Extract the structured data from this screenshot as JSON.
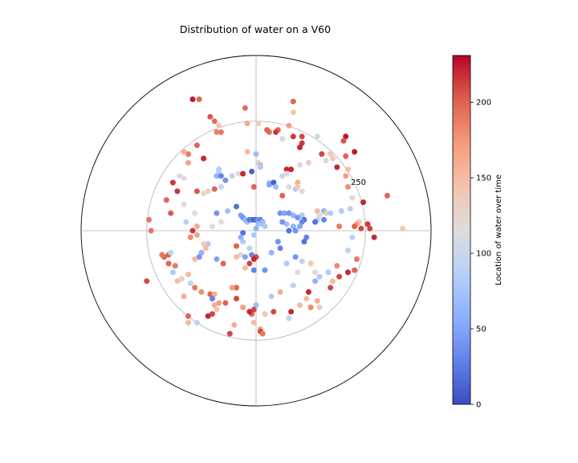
{
  "chart_data": {
    "type": "scatter",
    "projection": "polar",
    "title": "Distribution of water on a V60",
    "r_ticks": [
      250
    ],
    "r_max": 400,
    "grid": true,
    "colormap": "coolwarm",
    "colorbar": {
      "label": "Location of water over time",
      "range": [
        0,
        231
      ],
      "ticks": [
        0,
        50,
        100,
        150,
        200
      ]
    },
    "points": [
      {
        "x": -145,
        "y": 300,
        "c": 225
      },
      {
        "x": -130,
        "y": 300,
        "c": 200
      },
      {
        "x": -105,
        "y": 260,
        "c": 205
      },
      {
        "x": -95,
        "y": 250,
        "c": 195
      },
      {
        "x": -90,
        "y": 225,
        "c": 185
      },
      {
        "x": -80,
        "y": 225,
        "c": 190
      },
      {
        "x": -85,
        "y": 240,
        "c": 140
      },
      {
        "x": -25,
        "y": 280,
        "c": 195
      },
      {
        "x": -20,
        "y": 245,
        "c": 165
      },
      {
        "x": 5,
        "y": 245,
        "c": 135
      },
      {
        "x": 85,
        "y": 295,
        "c": 200
      },
      {
        "x": 85,
        "y": 270,
        "c": 140
      },
      {
        "x": 75,
        "y": 240,
        "c": 170
      },
      {
        "x": 50,
        "y": 230,
        "c": 200
      },
      {
        "x": 45,
        "y": 225,
        "c": 215
      },
      {
        "x": 30,
        "y": 225,
        "c": 195
      },
      {
        "x": 25,
        "y": 230,
        "c": 200
      },
      {
        "x": 60,
        "y": 210,
        "c": 110
      },
      {
        "x": 85,
        "y": 215,
        "c": 215
      },
      {
        "x": 105,
        "y": 215,
        "c": 210
      },
      {
        "x": 105,
        "y": 200,
        "c": 215
      },
      {
        "x": 100,
        "y": 190,
        "c": 220
      },
      {
        "x": 140,
        "y": 215,
        "c": 110
      },
      {
        "x": 205,
        "y": 215,
        "c": 225
      },
      {
        "x": 200,
        "y": 205,
        "c": 205
      },
      {
        "x": 225,
        "y": 180,
        "c": 225
      },
      {
        "x": 205,
        "y": 170,
        "c": 200
      },
      {
        "x": 185,
        "y": 145,
        "c": 220
      },
      {
        "x": 210,
        "y": 140,
        "c": 150
      },
      {
        "x": 205,
        "y": 125,
        "c": 170
      },
      {
        "x": 210,
        "y": 100,
        "c": 180
      },
      {
        "x": 220,
        "y": 75,
        "c": 120
      },
      {
        "x": 300,
        "y": 80,
        "c": 200
      },
      {
        "x": -135,
        "y": 195,
        "c": 200
      },
      {
        "x": -155,
        "y": 175,
        "c": 190
      },
      {
        "x": -165,
        "y": 180,
        "c": 160
      },
      {
        "x": -155,
        "y": 155,
        "c": 165
      },
      {
        "x": -120,
        "y": 165,
        "c": 220
      },
      {
        "x": -175,
        "y": 125,
        "c": 110
      },
      {
        "x": -165,
        "y": 120,
        "c": 115
      },
      {
        "x": -190,
        "y": 110,
        "c": 215
      },
      {
        "x": -180,
        "y": 90,
        "c": 215
      },
      {
        "x": -165,
        "y": 60,
        "c": 120
      },
      {
        "x": -205,
        "y": 70,
        "c": 200
      },
      {
        "x": -195,
        "y": 40,
        "c": 205
      },
      {
        "x": -245,
        "y": 25,
        "c": 190
      },
      {
        "x": -240,
        "y": 0,
        "c": 190
      },
      {
        "x": -135,
        "y": 90,
        "c": 205
      },
      {
        "x": -120,
        "y": 85,
        "c": 120
      },
      {
        "x": -110,
        "y": 90,
        "c": 130
      },
      {
        "x": -95,
        "y": 95,
        "c": 200
      },
      {
        "x": -70,
        "y": 115,
        "c": 40
      },
      {
        "x": -85,
        "y": 140,
        "c": 80
      },
      {
        "x": -85,
        "y": 135,
        "c": 85
      },
      {
        "x": -90,
        "y": 125,
        "c": 60
      },
      {
        "x": -80,
        "y": 125,
        "c": 30
      },
      {
        "x": -80,
        "y": 100,
        "c": 100
      },
      {
        "x": -55,
        "y": 125,
        "c": 90
      },
      {
        "x": -40,
        "y": 130,
        "c": 120
      },
      {
        "x": -30,
        "y": 130,
        "c": 220
      },
      {
        "x": -10,
        "y": 135,
        "c": 10
      },
      {
        "x": 0,
        "y": 175,
        "c": 70
      },
      {
        "x": 5,
        "y": 155,
        "c": 100
      },
      {
        "x": 10,
        "y": 150,
        "c": 160
      },
      {
        "x": 10,
        "y": 145,
        "c": 80
      },
      {
        "x": -20,
        "y": 180,
        "c": 150
      },
      {
        "x": 30,
        "y": 110,
        "c": 80
      },
      {
        "x": 30,
        "y": 105,
        "c": 50
      },
      {
        "x": 40,
        "y": 110,
        "c": 10
      },
      {
        "x": 45,
        "y": 100,
        "c": 70
      },
      {
        "x": 60,
        "y": 125,
        "c": 100
      },
      {
        "x": 70,
        "y": 140,
        "c": 220
      },
      {
        "x": 80,
        "y": 140,
        "c": 220
      },
      {
        "x": 70,
        "y": 130,
        "c": 120
      },
      {
        "x": 60,
        "y": 80,
        "c": 200
      },
      {
        "x": 75,
        "y": 100,
        "c": 110
      },
      {
        "x": 90,
        "y": 95,
        "c": 80
      },
      {
        "x": 95,
        "y": 110,
        "c": 160
      },
      {
        "x": -5,
        "y": 100,
        "c": 200
      },
      {
        "x": -45,
        "y": 55,
        "c": 20
      },
      {
        "x": -65,
        "y": 45,
        "c": 70
      },
      {
        "x": -90,
        "y": 40,
        "c": 40
      },
      {
        "x": -100,
        "y": 10,
        "c": 120
      },
      {
        "x": -140,
        "y": 40,
        "c": 115
      },
      {
        "x": -135,
        "y": 10,
        "c": 160
      },
      {
        "x": -135,
        "y": -10,
        "c": 165
      },
      {
        "x": -145,
        "y": 0,
        "c": 215
      },
      {
        "x": -160,
        "y": 20,
        "c": 90
      },
      {
        "x": -150,
        "y": -15,
        "c": 180
      },
      {
        "x": -110,
        "y": -30,
        "c": 80
      },
      {
        "x": -120,
        "y": -30,
        "c": 140
      },
      {
        "x": -115,
        "y": -40,
        "c": 150
      },
      {
        "x": -125,
        "y": -50,
        "c": 60
      },
      {
        "x": -130,
        "y": -60,
        "c": 40
      },
      {
        "x": -140,
        "y": -65,
        "c": 150
      },
      {
        "x": -80,
        "y": 20,
        "c": 120
      },
      {
        "x": -35,
        "y": 35,
        "c": 50
      },
      {
        "x": -30,
        "y": 30,
        "c": 40
      },
      {
        "x": -25,
        "y": 25,
        "c": 60
      },
      {
        "x": -20,
        "y": 20,
        "c": 70
      },
      {
        "x": -15,
        "y": 25,
        "c": 20
      },
      {
        "x": -10,
        "y": 25,
        "c": 30
      },
      {
        "x": -5,
        "y": 25,
        "c": 10
      },
      {
        "x": 0,
        "y": 25,
        "c": 20
      },
      {
        "x": 5,
        "y": 25,
        "c": 40
      },
      {
        "x": 10,
        "y": 25,
        "c": 30
      },
      {
        "x": 15,
        "y": 20,
        "c": 60
      },
      {
        "x": 15,
        "y": 15,
        "c": 70
      },
      {
        "x": 20,
        "y": 10,
        "c": 80
      },
      {
        "x": 0,
        "y": 5,
        "c": 60
      },
      {
        "x": 5,
        "y": 15,
        "c": 70
      },
      {
        "x": -5,
        "y": -10,
        "c": 80
      },
      {
        "x": -30,
        "y": -5,
        "c": 20
      },
      {
        "x": -35,
        "y": -15,
        "c": 60
      },
      {
        "x": -30,
        "y": -25,
        "c": 80
      },
      {
        "x": -15,
        "y": -40,
        "c": 90
      },
      {
        "x": -35,
        "y": -55,
        "c": 120
      },
      {
        "x": -45,
        "y": -35,
        "c": 200
      },
      {
        "x": -25,
        "y": -60,
        "c": 50
      },
      {
        "x": -45,
        "y": -60,
        "c": 150
      },
      {
        "x": -10,
        "y": -55,
        "c": 30
      },
      {
        "x": 0,
        "y": -60,
        "c": 210
      },
      {
        "x": -5,
        "y": -65,
        "c": 220
      },
      {
        "x": -5,
        "y": -90,
        "c": 30
      },
      {
        "x": -15,
        "y": -75,
        "c": 210
      },
      {
        "x": 20,
        "y": -90,
        "c": 40
      },
      {
        "x": 35,
        "y": -50,
        "c": 60
      },
      {
        "x": 50,
        "y": -25,
        "c": 40
      },
      {
        "x": 55,
        "y": -40,
        "c": 30
      },
      {
        "x": 70,
        "y": -75,
        "c": 80
      },
      {
        "x": 90,
        "y": -60,
        "c": 40
      },
      {
        "x": 105,
        "y": -70,
        "c": 90
      },
      {
        "x": 55,
        "y": 40,
        "c": 40
      },
      {
        "x": 65,
        "y": 40,
        "c": 50
      },
      {
        "x": 75,
        "y": 40,
        "c": 40
      },
      {
        "x": 85,
        "y": 35,
        "c": 60
      },
      {
        "x": 95,
        "y": 30,
        "c": 40
      },
      {
        "x": 105,
        "y": 35,
        "c": 80
      },
      {
        "x": 110,
        "y": 25,
        "c": 20
      },
      {
        "x": 105,
        "y": 20,
        "c": 30
      },
      {
        "x": 100,
        "y": 10,
        "c": 50
      },
      {
        "x": 85,
        "y": 10,
        "c": 60
      },
      {
        "x": 70,
        "y": 15,
        "c": 70
      },
      {
        "x": 60,
        "y": 20,
        "c": 40
      },
      {
        "x": 75,
        "y": 0,
        "c": 20
      },
      {
        "x": 90,
        "y": 0,
        "c": 40
      },
      {
        "x": 115,
        "y": -15,
        "c": 30
      },
      {
        "x": 110,
        "y": -25,
        "c": 20
      },
      {
        "x": 140,
        "y": 45,
        "c": 150
      },
      {
        "x": 155,
        "y": 45,
        "c": 60
      },
      {
        "x": 160,
        "y": 40,
        "c": 140
      },
      {
        "x": 170,
        "y": 40,
        "c": 80
      },
      {
        "x": 145,
        "y": 35,
        "c": 120
      },
      {
        "x": 140,
        "y": 25,
        "c": 90
      },
      {
        "x": 155,
        "y": 25,
        "c": 30
      },
      {
        "x": 135,
        "y": 20,
        "c": 20
      },
      {
        "x": 190,
        "y": 10,
        "c": 190
      },
      {
        "x": 195,
        "y": 45,
        "c": 80
      },
      {
        "x": 215,
        "y": 50,
        "c": 90
      },
      {
        "x": 235,
        "y": 20,
        "c": 140
      },
      {
        "x": 230,
        "y": 15,
        "c": 170
      },
      {
        "x": 225,
        "y": 10,
        "c": 200
      },
      {
        "x": 220,
        "y": -15,
        "c": 90
      },
      {
        "x": 240,
        "y": 5,
        "c": 210
      },
      {
        "x": 255,
        "y": 15,
        "c": 215
      },
      {
        "x": 260,
        "y": 5,
        "c": 210
      },
      {
        "x": 270,
        "y": -15,
        "c": 220
      },
      {
        "x": 335,
        "y": 5,
        "c": 140
      },
      {
        "x": 245,
        "y": 65,
        "c": 220
      },
      {
        "x": 210,
        "y": -45,
        "c": 90
      },
      {
        "x": 230,
        "y": -65,
        "c": 190
      },
      {
        "x": 225,
        "y": -90,
        "c": 200
      },
      {
        "x": 210,
        "y": -95,
        "c": 220
      },
      {
        "x": 185,
        "y": -80,
        "c": 180
      },
      {
        "x": 190,
        "y": -105,
        "c": 210
      },
      {
        "x": 165,
        "y": -95,
        "c": 80
      },
      {
        "x": 175,
        "y": -115,
        "c": 150
      },
      {
        "x": 170,
        "y": -130,
        "c": 210
      },
      {
        "x": 125,
        "y": -75,
        "c": 140
      },
      {
        "x": 135,
        "y": -115,
        "c": 60
      },
      {
        "x": 120,
        "y": -140,
        "c": 220
      },
      {
        "x": 115,
        "y": -155,
        "c": 150
      },
      {
        "x": 140,
        "y": -160,
        "c": 160
      },
      {
        "x": 145,
        "y": -175,
        "c": 140
      },
      {
        "x": 125,
        "y": -175,
        "c": 180
      },
      {
        "x": 100,
        "y": -170,
        "c": 150
      },
      {
        "x": 80,
        "y": -185,
        "c": 220
      },
      {
        "x": 75,
        "y": -200,
        "c": 90
      },
      {
        "x": 55,
        "y": -140,
        "c": 160
      },
      {
        "x": 85,
        "y": -125,
        "c": 90
      },
      {
        "x": 95,
        "y": -95,
        "c": 120
      },
      {
        "x": 35,
        "y": -150,
        "c": 80
      },
      {
        "x": 40,
        "y": -185,
        "c": 210
      },
      {
        "x": 20,
        "y": -190,
        "c": 140
      },
      {
        "x": 0,
        "y": -170,
        "c": 70
      },
      {
        "x": -5,
        "y": -180,
        "c": 210
      },
      {
        "x": -10,
        "y": -190,
        "c": 200
      },
      {
        "x": -15,
        "y": -185,
        "c": 220
      },
      {
        "x": -30,
        "y": -175,
        "c": 170
      },
      {
        "x": -5,
        "y": -210,
        "c": 150
      },
      {
        "x": 10,
        "y": -225,
        "c": 170
      },
      {
        "x": 10,
        "y": -230,
        "c": 210
      },
      {
        "x": 15,
        "y": -235,
        "c": 190
      },
      {
        "x": -50,
        "y": -215,
        "c": 160
      },
      {
        "x": -60,
        "y": -235,
        "c": 210
      },
      {
        "x": -45,
        "y": -155,
        "c": 210
      },
      {
        "x": -70,
        "y": -165,
        "c": 200
      },
      {
        "x": -85,
        "y": -165,
        "c": 170
      },
      {
        "x": -95,
        "y": -170,
        "c": 160
      },
      {
        "x": -90,
        "y": -180,
        "c": 140
      },
      {
        "x": -100,
        "y": -190,
        "c": 210
      },
      {
        "x": -110,
        "y": -195,
        "c": 220
      },
      {
        "x": -155,
        "y": -195,
        "c": 200
      },
      {
        "x": -155,
        "y": -210,
        "c": 150
      },
      {
        "x": -135,
        "y": -210,
        "c": 90
      },
      {
        "x": -105,
        "y": -145,
        "c": 200
      },
      {
        "x": -95,
        "y": -145,
        "c": 160
      },
      {
        "x": -100,
        "y": -155,
        "c": 30
      },
      {
        "x": -125,
        "y": -140,
        "c": 180
      },
      {
        "x": -140,
        "y": -130,
        "c": 190
      },
      {
        "x": -150,
        "y": -120,
        "c": 90
      },
      {
        "x": -155,
        "y": -100,
        "c": 150
      },
      {
        "x": -170,
        "y": -110,
        "c": 130
      },
      {
        "x": -165,
        "y": -150,
        "c": 160
      },
      {
        "x": -180,
        "y": -115,
        "c": 150
      },
      {
        "x": -185,
        "y": -80,
        "c": 190
      },
      {
        "x": -200,
        "y": -55,
        "c": 200
      },
      {
        "x": -210,
        "y": -60,
        "c": 200
      },
      {
        "x": -215,
        "y": -55,
        "c": 190
      },
      {
        "x": -200,
        "y": -75,
        "c": 200
      },
      {
        "x": -190,
        "y": -95,
        "c": 80
      },
      {
        "x": -250,
        "y": -115,
        "c": 210
      },
      {
        "x": -195,
        "y": -50,
        "c": 90
      },
      {
        "x": -45,
        "y": -130,
        "c": 200
      },
      {
        "x": -55,
        "y": -130,
        "c": 170
      },
      {
        "x": -90,
        "y": -65,
        "c": 50
      },
      {
        "x": -75,
        "y": -75,
        "c": 200
      },
      {
        "x": -25,
        "y": -85,
        "c": 150
      },
      {
        "x": 135,
        "y": -95,
        "c": 120
      },
      {
        "x": 145,
        "y": -105,
        "c": 80
      },
      {
        "x": 105,
        "y": 90,
        "c": 120
      },
      {
        "x": 95,
        "y": 100,
        "c": 140
      },
      {
        "x": 100,
        "y": 150,
        "c": 110
      },
      {
        "x": 120,
        "y": 155,
        "c": 130
      },
      {
        "x": 150,
        "y": 175,
        "c": 210
      },
      {
        "x": 170,
        "y": 175,
        "c": 140
      },
      {
        "x": 160,
        "y": 160,
        "c": 120
      },
      {
        "x": 175,
        "y": 165,
        "c": 140
      }
    ]
  }
}
